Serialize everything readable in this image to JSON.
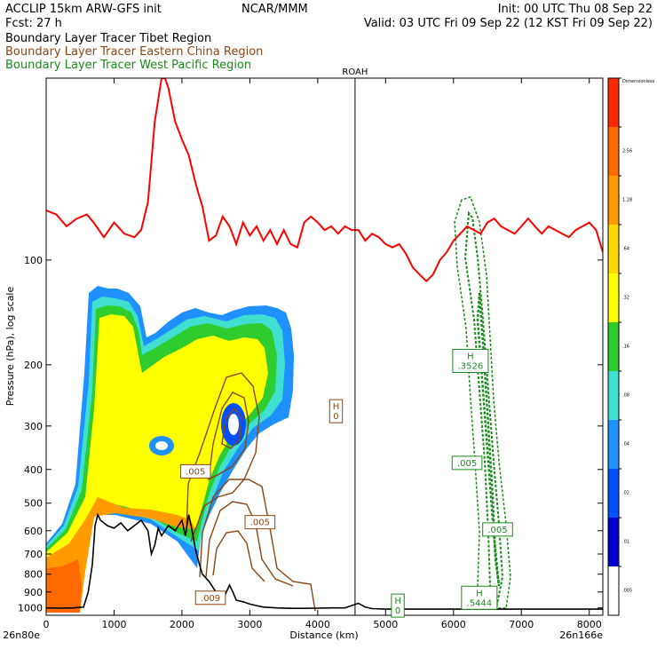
{
  "header": {
    "left_line1": "ACCLIP 15km ARW-GFS init",
    "center_line1": "NCAR/MMM",
    "right_line1": "Init: 00 UTC Thu 08 Sep 22",
    "left_line2": "Fcst:   27 h",
    "right_line2": "Valid: 03 UTC Fri 09 Sep 22 (12 KST Fri 09 Sep 22)"
  },
  "legend": [
    {
      "label": "Boundary Layer Tracer  Tibet Region",
      "color": "#000000"
    },
    {
      "label": "Boundary Layer Tracer  Eastern China Region",
      "color": "#8b4513"
    },
    {
      "label": "Boundary Layer Tracer  West Pacific Region",
      "color": "#1a8a1a"
    }
  ],
  "colors": {
    "tropopause": "#ff0000",
    "terrain": "#000000",
    "eastern_china_contour": "#8b4513",
    "west_pacific_contour": "#1a8a1a"
  },
  "chart_data": {
    "type": "heatmap",
    "xlabel": "Distance (km)",
    "ylabel": "Pressure (hPa), log scale",
    "x_ticks": [
      0,
      1000,
      2000,
      3000,
      4000,
      5000,
      6000,
      7000,
      8000
    ],
    "xlim": [
      0,
      8200
    ],
    "y_ticks": [
      100,
      200,
      300,
      400,
      500,
      600,
      700,
      800,
      900,
      1000
    ],
    "ylim": [
      1050,
      30
    ],
    "y_scale": "log",
    "start_point_label": "26n80e",
    "end_point_label": "26n166e",
    "vertical_marker": {
      "label": "ROAH",
      "x": 4550
    },
    "colorbar": {
      "labels": [
        "Dimensionless",
        "2.56",
        "1.28",
        ".64",
        ".32",
        ".16",
        ".08",
        ".04",
        ".02",
        ".01",
        ".005"
      ],
      "colors": [
        "#ff2a00",
        "#ff6a00",
        "#ff9a00",
        "#ffd800",
        "#ffff00",
        "#2ecc2e",
        "#40e0d0",
        "#1e90ff",
        "#0050ff",
        "#0000cc",
        "#ffffff"
      ]
    },
    "tropopause": {
      "x": [
        0,
        150,
        300,
        450,
        600,
        700,
        850,
        1000,
        1150,
        1300,
        1400,
        1500,
        1600,
        1700,
        1750,
        1800,
        1900,
        2000,
        2100,
        2200,
        2250,
        2300,
        2400,
        2500,
        2600,
        2700,
        2800,
        2900,
        3000,
        3100,
        3200,
        3300,
        3400,
        3500,
        3600,
        3700,
        3800,
        3900,
        4000,
        4100,
        4200,
        4300,
        4400,
        4500,
        4600,
        4700,
        4800,
        4900,
        5000,
        5100,
        5200,
        5300,
        5400,
        5500,
        5600,
        5700,
        5800,
        5900,
        6000,
        6100,
        6200,
        6300,
        6400,
        6500,
        6600,
        6700,
        6800,
        6900,
        7000,
        7100,
        7200,
        7300,
        7400,
        7500,
        7600,
        7700,
        7800,
        7900,
        8000,
        8100,
        8200
      ],
      "y": [
        72,
        74,
        80,
        76,
        74,
        78,
        86,
        78,
        84,
        86,
        82,
        68,
        40,
        30,
        30,
        32,
        40,
        45,
        50,
        60,
        65,
        70,
        88,
        85,
        75,
        80,
        90,
        78,
        85,
        80,
        88,
        82,
        90,
        82,
        90,
        92,
        78,
        75,
        78,
        82,
        80,
        84,
        80,
        82,
        82,
        88,
        84,
        86,
        90,
        92,
        90,
        96,
        105,
        110,
        115,
        110,
        100,
        95,
        88,
        84,
        80,
        82,
        84,
        78,
        76,
        80,
        82,
        84,
        80,
        76,
        80,
        84,
        80,
        82,
        84,
        86,
        82,
        80,
        78,
        82,
        95
      ]
    },
    "terrain": {
      "x": [
        0,
        200,
        400,
        550,
        620,
        680,
        720,
        760,
        800,
        900,
        1000,
        1100,
        1200,
        1300,
        1400,
        1500,
        1550,
        1600,
        1650,
        1700,
        1800,
        1900,
        2000,
        2050,
        2100,
        2150,
        2200,
        2250,
        2300,
        2400,
        2500,
        2600,
        2700,
        2750,
        2800,
        2900,
        3000,
        3100,
        3200,
        3400,
        3600,
        3800,
        4000,
        4200,
        4400,
        4500,
        4600,
        4700,
        4800,
        5000,
        6000,
        7000,
        8200
      ],
      "y": [
        1000,
        1002,
        1000,
        995,
        900,
        750,
        580,
        540,
        560,
        580,
        590,
        570,
        600,
        580,
        560,
        600,
        700,
        660,
        590,
        620,
        580,
        600,
        560,
        620,
        540,
        600,
        680,
        740,
        800,
        840,
        900,
        950,
        860,
        900,
        950,
        960,
        975,
        985,
        995,
        1000,
        1003,
        1003,
        1002,
        1000,
        1000,
        985,
        970,
        995,
        1005,
        1008,
        1008,
        1008,
        1008
      ]
    },
    "boxes": [
      {
        "text": [
          "H",
          ".3526"
        ],
        "x": 6250,
        "p": 195,
        "color": "#1a8a1a"
      },
      {
        "text": [
          "H",
          "0"
        ],
        "x": 4270,
        "p": 272,
        "color": "#8b4513"
      },
      {
        "text": [
          ".005"
        ],
        "x": 2200,
        "p": 405,
        "color": "#8b4513"
      },
      {
        "text": [
          ".005"
        ],
        "x": 6200,
        "p": 383,
        "color": "#1a8a1a"
      },
      {
        "text": [
          ".005"
        ],
        "x": 3150,
        "p": 567,
        "color": "#8b4513"
      },
      {
        "text": [
          ".005"
        ],
        "x": 6650,
        "p": 595,
        "color": "#1a8a1a"
      },
      {
        "text": [
          "H",
          ".5444"
        ],
        "x": 6380,
        "p": 935,
        "color": "#1a8a1a"
      },
      {
        "text": [
          ".009"
        ],
        "x": 2420,
        "p": 935,
        "color": "#8b4513"
      },
      {
        "text": [
          "H",
          "0"
        ],
        "x": 5180,
        "p": 985,
        "color": "#1a8a1a"
      }
    ]
  }
}
